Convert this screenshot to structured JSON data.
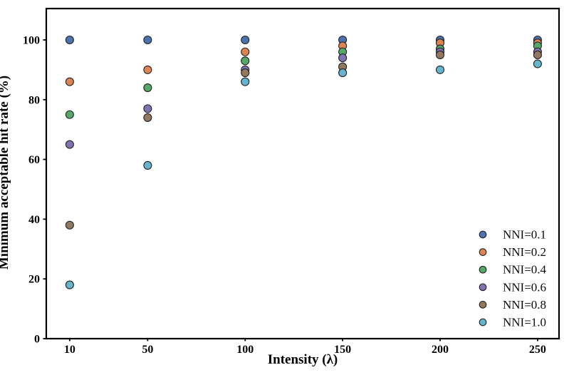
{
  "figure": {
    "background": "#ffffff",
    "frame_color": "#000000",
    "tick_color": "#000000"
  },
  "chart_data": {
    "type": "scatter",
    "title": "",
    "xlabel": "Intensity (λ)",
    "ylabel": "Minimum acceptable hit rate (%)",
    "x": [
      10,
      50,
      100,
      150,
      200,
      250
    ],
    "x_ticks": [
      10,
      50,
      100,
      150,
      200,
      250
    ],
    "y_ticks": [
      0,
      20,
      40,
      60,
      80,
      100
    ],
    "xlim": [
      -2,
      261
    ],
    "ylim": [
      0,
      110.5
    ],
    "grid": false,
    "legend_position": "lower right",
    "marker_edge_color": "#222222",
    "series": [
      {
        "name": "NNI=0.1",
        "color": "#4C72B0",
        "values": [
          100,
          100,
          100,
          100,
          100,
          100
        ]
      },
      {
        "name": "NNI=0.2",
        "color": "#DD8452",
        "values": [
          86,
          90,
          96,
          98,
          99,
          99
        ]
      },
      {
        "name": "NNI=0.4",
        "color": "#55A868",
        "values": [
          75,
          84,
          93,
          96,
          97,
          98
        ]
      },
      {
        "name": "NNI=0.6",
        "color": "#8172B3",
        "values": [
          65,
          77,
          90,
          94,
          96,
          96
        ]
      },
      {
        "name": "NNI=0.8",
        "color": "#937860",
        "values": [
          38,
          74,
          89,
          91,
          95,
          95
        ]
      },
      {
        "name": "NNI=1.0",
        "color": "#64B5CD",
        "values": [
          18,
          58,
          86,
          89,
          90,
          92
        ]
      }
    ]
  }
}
